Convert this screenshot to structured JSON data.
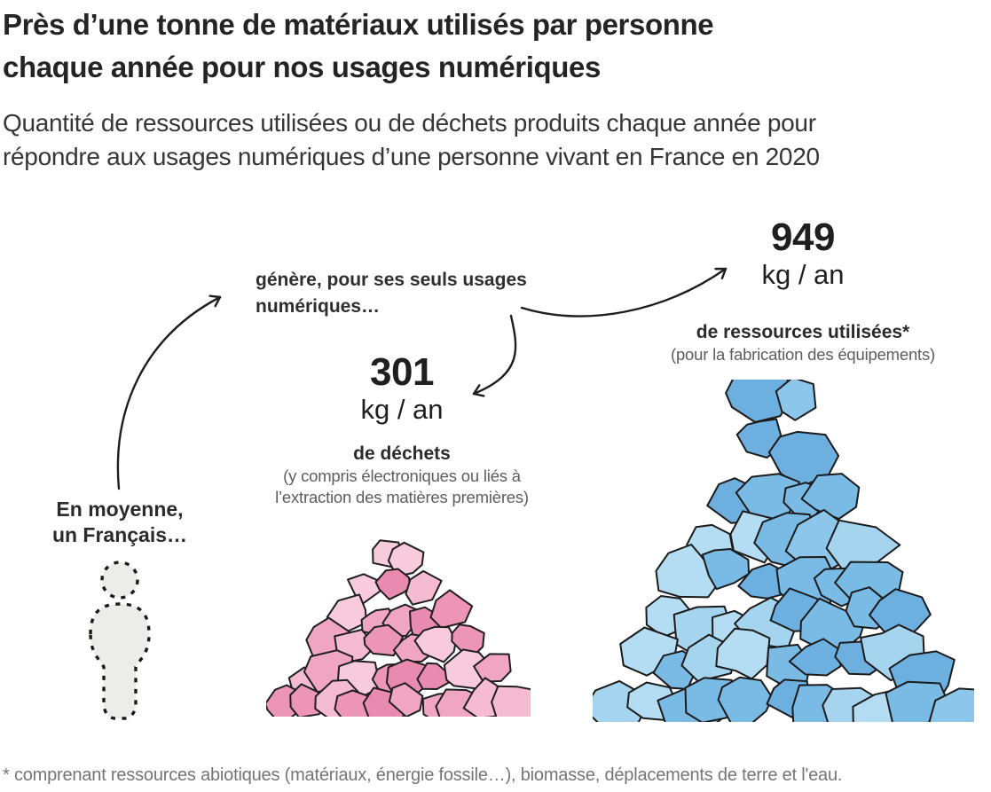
{
  "header": {
    "title": "Près d’une tonne de matériaux utilisés par personne\nchaque année pour nos usages numériques",
    "subtitle": "Quantité de ressources utilisées ou de déchets produits chaque année pour\nrépondre aux usages numériques d’une personne vivant en France en 2020"
  },
  "flow": {
    "person_label": "En moyenne,\nun Français…",
    "generates_label": "génère, pour ses seuls usages\nnumériques…"
  },
  "waste": {
    "value": "301",
    "unit": "kg / an",
    "label": "de déchets",
    "note": "(y compris électroniques ou liés à\nl’extraction des matières premières)",
    "accent_color": "#ee95b8",
    "pile_colors": [
      "#f5bcd1",
      "#f0a6c3",
      "#ec95b7",
      "#f8cbdc",
      "#e98ab0"
    ],
    "outline_color": "#1f1f1f"
  },
  "resources": {
    "value": "949",
    "unit": "kg / an",
    "label": "de ressources utilisées*",
    "note": "(pour la fabrication des équipements)",
    "accent_color": "#79bbe5",
    "pile_colors": [
      "#a5d4ef",
      "#8cc6ea",
      "#79bbe5",
      "#b4ddf4",
      "#6db0df"
    ],
    "outline_color": "#1b1b1b"
  },
  "footnote": "* comprenant ressources abiotiques (matériaux, énergie fossile…), biomasse, déplacements de terre et l'eau.",
  "arrow_color": "#1d1d1d",
  "chart_data": {
    "type": "bar",
    "style": "pictorial-pile-infographic",
    "title": "Près d’une tonne de matériaux utilisés par personne chaque année pour nos usages numériques",
    "subtitle": "Quantité de ressources utilisées ou de déchets produits chaque année pour répondre aux usages numériques d’une personne vivant en France en 2020",
    "categories": [
      "de déchets",
      "de ressources utilisées*"
    ],
    "values": [
      301,
      949
    ],
    "unit": "kg / an",
    "notes": [
      "(y compris électroniques ou liés à l’extraction des matières premières)",
      "(pour la fabrication des équipements)"
    ],
    "colors": [
      "#ee95b8",
      "#79bbe5"
    ],
    "footnote": "* comprenant ressources abiotiques (matériaux, énergie fossile…), biomasse, déplacements de terre et l'eau."
  }
}
